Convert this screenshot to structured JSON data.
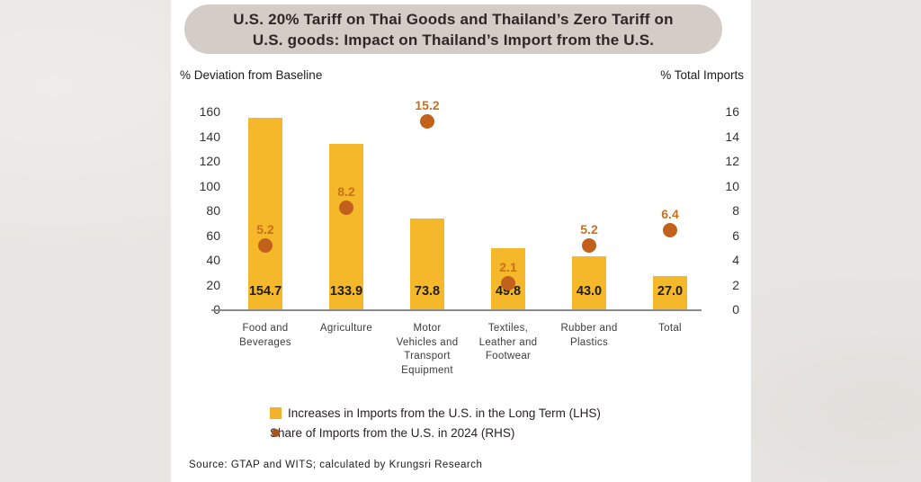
{
  "title": {
    "line1": "U.S. 20% Tariff on Thai Goods and Thailand’s Zero Tariff on",
    "line2": "U.S. goods: Impact on Thailand’s Import from the U.S."
  },
  "axes": {
    "left_header": "% Deviation from Baseline",
    "right_header": "% Total Imports",
    "left_ticks": [
      160,
      140,
      120,
      100,
      80,
      60,
      40,
      20,
      0
    ],
    "right_ticks": [
      16,
      14,
      12,
      10,
      8,
      6,
      4,
      2,
      0
    ]
  },
  "chart_data": {
    "type": "bar",
    "title": "U.S. 20% Tariff on Thai Goods and Thailand’s Zero Tariff on U.S. goods: Impact on Thailand’s Import from the U.S.",
    "categories": [
      "Food and Beverages",
      "Agriculture",
      "Motor Vehicles and Transport Equipment",
      "Textiles, Leather and Footwear",
      "Rubber and Plastics",
      "Total"
    ],
    "category_lines": [
      [
        "Food and",
        "Beverages"
      ],
      [
        "Agriculture"
      ],
      [
        "Motor",
        "Vehicles and",
        "Transport",
        "Equipment"
      ],
      [
        "Textiles,",
        "Leather and",
        "Footwear"
      ],
      [
        "Rubber and",
        "Plastics"
      ],
      [
        "Total"
      ]
    ],
    "series": [
      {
        "name": "Increases in Imports from the U.S. in the Long Term (LHS)",
        "type": "bar",
        "axis": "left",
        "values": [
          154.7,
          133.9,
          73.8,
          49.8,
          43.0,
          27.0
        ]
      },
      {
        "name": "Share of Imports from the U.S. in 2024 (RHS)",
        "type": "point",
        "axis": "right",
        "values": [
          5.2,
          8.2,
          15.2,
          2.1,
          5.2,
          6.4
        ]
      }
    ],
    "bar_labels": [
      "154.7",
      "133.9",
      "73.8",
      "49.8",
      "43.0",
      "27.0"
    ],
    "dot_labels": [
      "5.2",
      "8.2",
      "15.2",
      "2.1",
      "5.2",
      "6.4"
    ],
    "left_axis": {
      "label": "% Deviation from Baseline",
      "min": 0,
      "max": 160
    },
    "right_axis": {
      "label": "% Total Imports",
      "min": 0,
      "max": 16
    },
    "grid": false,
    "legend_position": "bottom"
  },
  "legend": [
    {
      "marker": "square",
      "color": "#F2B32A",
      "label": "Increases in Imports from the U.S. in the Long Term (LHS)"
    },
    {
      "marker": "dot",
      "color": "#A6551E",
      "label": "Share of Imports from the U.S. in 2024 (RHS)"
    }
  ],
  "source": "Source: GTAP and WITS; calculated by Krungsri Research",
  "colors": {
    "bar": "#F5B82B",
    "dot": "#C2611B",
    "dot_label": "#C8701E",
    "title_bg": "#D4CCC7",
    "title_text": "#2F2727",
    "page_bg": "#E9E7E4",
    "panel_bg": "#FFFFFF",
    "axis_line": "#8A8A8A"
  }
}
